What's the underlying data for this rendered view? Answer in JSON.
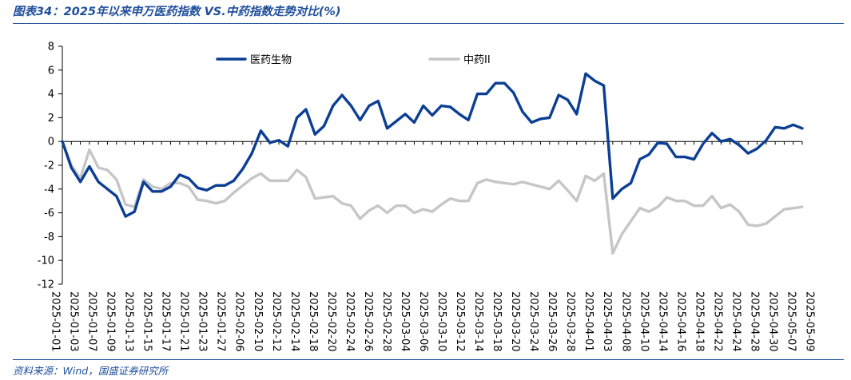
{
  "header": {
    "title": "图表34：2025年以来申万医药指数 VS.中药指数走势对比(%)"
  },
  "footer": {
    "source": "资料来源：Wind，国盛证券研究所"
  },
  "colors": {
    "accent": "#1f4e9b",
    "series_1": "#0c3f94",
    "series_2": "#c6c6c6"
  },
  "chart_data": {
    "type": "line",
    "title": "",
    "xlabel": "",
    "ylabel": "",
    "ylim": [
      -12,
      8
    ],
    "yticks": [
      8,
      6,
      4,
      2,
      0,
      -2,
      -4,
      -6,
      -8,
      -10,
      -12
    ],
    "legend_position": "top",
    "x_tick_labels": [
      "2025-01-01",
      "2025-01-03",
      "2025-01-07",
      "2025-01-09",
      "2025-01-13",
      "2025-01-15",
      "2025-01-17",
      "2025-01-21",
      "2025-01-23",
      "2025-01-27",
      "2025-02-06",
      "2025-02-10",
      "2025-02-12",
      "2025-02-14",
      "2025-02-18",
      "2025-02-20",
      "2025-02-24",
      "2025-02-26",
      "2025-02-28",
      "2025-03-04",
      "2025-03-06",
      "2025-03-10",
      "2025-03-12",
      "2025-03-14",
      "2025-03-18",
      "2025-03-20",
      "2025-03-24",
      "2025-03-26",
      "2025-03-28",
      "2025-04-01",
      "2025-04-03",
      "2025-04-08",
      "2025-04-10",
      "2025-04-14",
      "2025-04-16",
      "2025-04-18",
      "2025-04-22",
      "2025-04-24",
      "2025-04-28",
      "2025-04-30",
      "2025-05-07",
      "2025-05-09"
    ],
    "series": [
      {
        "name": "医药生物",
        "values": [
          0.0,
          -2.2,
          -3.4,
          -2.1,
          -3.4,
          -4.0,
          -4.6,
          -6.3,
          -5.9,
          -3.4,
          -4.2,
          -4.2,
          -3.8,
          -2.8,
          -3.1,
          -3.9,
          -4.1,
          -3.7,
          -3.7,
          -3.3,
          -2.3,
          -1.0,
          0.9,
          -0.1,
          0.1,
          -0.4,
          2.0,
          2.7,
          0.6,
          1.3,
          3.0,
          3.9,
          3.0,
          1.8,
          3.0,
          3.4,
          1.1,
          1.7,
          2.3,
          1.6,
          3.0,
          2.2,
          3.0,
          2.9,
          2.3,
          1.8,
          4.0,
          4.0,
          4.9,
          4.9,
          4.1,
          2.5,
          1.6,
          1.9,
          2.0,
          3.9,
          3.5,
          2.3,
          5.7,
          5.1,
          4.7,
          -4.8,
          -4.0,
          -3.5,
          -1.5,
          -1.1,
          -0.1,
          -0.2,
          -1.3,
          -1.3,
          -1.5,
          -0.2,
          0.7,
          0.0,
          0.2,
          -0.3,
          -1.0,
          -0.6,
          0.1,
          1.2,
          1.1,
          1.4,
          1.1
        ]
      },
      {
        "name": "中药II",
        "values": [
          0.0,
          -2.0,
          -3.1,
          -0.7,
          -2.2,
          -2.4,
          -3.2,
          -5.3,
          -5.5,
          -3.2,
          -3.8,
          -4.0,
          -3.5,
          -3.5,
          -3.8,
          -4.9,
          -5.0,
          -5.2,
          -5.0,
          -4.3,
          -3.7,
          -3.1,
          -2.7,
          -3.3,
          -3.3,
          -3.3,
          -2.4,
          -3.0,
          -4.8,
          -4.7,
          -4.6,
          -5.2,
          -5.4,
          -6.5,
          -5.8,
          -5.4,
          -6.0,
          -5.4,
          -5.4,
          -6.0,
          -5.7,
          -5.9,
          -5.3,
          -4.8,
          -5.0,
          -5.0,
          -3.5,
          -3.2,
          -3.4,
          -3.5,
          -3.6,
          -3.4,
          -3.6,
          -3.8,
          -4.0,
          -3.3,
          -4.1,
          -5.0,
          -2.9,
          -3.3,
          -2.7,
          -9.4,
          -7.8,
          -6.7,
          -5.6,
          -5.9,
          -5.5,
          -4.7,
          -5.0,
          -5.0,
          -5.4,
          -5.4,
          -4.6,
          -5.6,
          -5.3,
          -5.9,
          -7.0,
          -7.1,
          -6.9,
          -6.3,
          -5.7,
          -5.6,
          -5.5
        ]
      }
    ]
  }
}
